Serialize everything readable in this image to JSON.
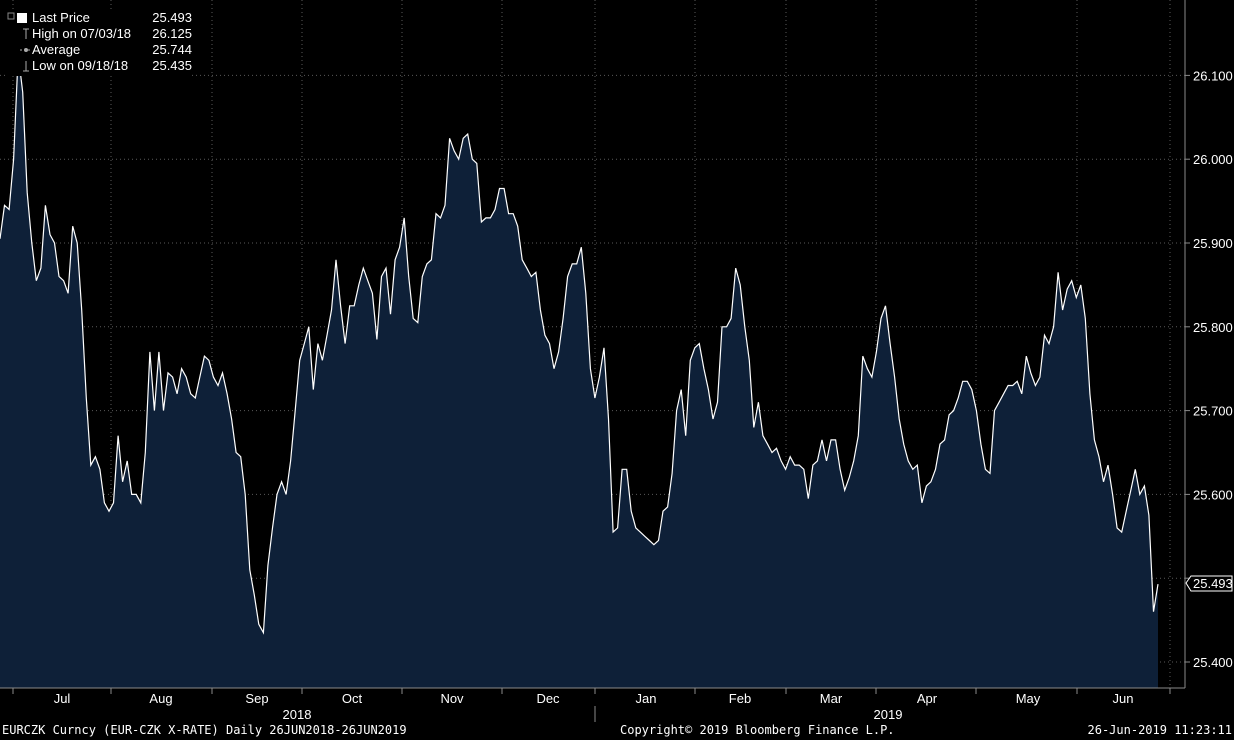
{
  "legend": {
    "last_price_label": "Last Price",
    "last_price_value": "25.493",
    "high_label": "High on 07/03/18",
    "high_value": "26.125",
    "average_label": "Average",
    "average_value": "25.744",
    "low_label": "Low on 09/18/18",
    "low_value": "25.435"
  },
  "footer": {
    "left": "EURCZK Curncy (EUR-CZK X-RATE)  Daily 26JUN2018-26JUN2019",
    "center": "Copyright© 2019 Bloomberg Finance L.P.",
    "right": "26-Jun-2019 11:23:11"
  },
  "colors": {
    "background": "#000000",
    "fill": "#0e2038",
    "line": "#ffffff",
    "grid": "#5a5a5a"
  },
  "chart_data": {
    "type": "area",
    "ylim": [
      25.38,
      26.16
    ],
    "yticks": [
      25.4,
      25.5,
      25.6,
      25.7,
      25.8,
      25.9,
      26.0,
      26.1
    ],
    "ytick_labels": [
      "25.400",
      "",
      "25.600",
      "25.700",
      "25.800",
      "25.900",
      "26.000",
      "26.100"
    ],
    "months": [
      "Jul",
      "Aug",
      "Sep",
      "Oct",
      "Nov",
      "Dec",
      "Jan",
      "Feb",
      "Mar",
      "Apr",
      "May",
      "Jun"
    ],
    "years": [
      "2018",
      "2019"
    ],
    "last_value_label": "25.493",
    "grid": true,
    "series": [
      {
        "values": [
          25.905,
          25.945,
          25.94,
          26.0,
          26.125,
          26.08,
          25.96,
          25.9,
          25.855,
          25.87,
          25.945,
          25.91,
          25.9,
          25.86,
          25.855,
          25.84,
          25.92,
          25.9,
          25.82,
          25.715,
          25.635,
          25.645,
          25.63,
          25.59,
          25.58,
          25.59,
          25.67,
          25.615,
          25.64,
          25.6,
          25.6,
          25.59,
          25.65,
          25.77,
          25.7,
          25.77,
          25.7,
          25.745,
          25.74,
          25.72,
          25.75,
          25.74,
          25.72,
          25.715,
          25.74,
          25.765,
          25.76,
          25.74,
          25.73,
          25.745,
          25.72,
          25.69,
          25.65,
          25.645,
          25.6,
          25.51,
          25.48,
          25.445,
          25.435,
          25.515,
          25.56,
          25.6,
          25.615,
          25.6,
          25.64,
          25.7,
          25.76,
          25.78,
          25.8,
          25.725,
          25.78,
          25.76,
          25.79,
          25.82,
          25.88,
          25.825,
          25.78,
          25.825,
          25.825,
          25.85,
          25.87,
          25.855,
          25.84,
          25.785,
          25.86,
          25.87,
          25.815,
          25.88,
          25.895,
          25.93,
          25.86,
          25.81,
          25.805,
          25.86,
          25.875,
          25.88,
          25.935,
          25.93,
          25.945,
          26.025,
          26.01,
          26.0,
          26.025,
          26.03,
          26.0,
          25.995,
          25.925,
          25.93,
          25.93,
          25.94,
          25.965,
          25.965,
          25.935,
          25.935,
          25.92,
          25.88,
          25.87,
          25.86,
          25.865,
          25.82,
          25.79,
          25.78,
          25.75,
          25.77,
          25.81,
          25.86,
          25.875,
          25.875,
          25.895,
          25.84,
          25.75,
          25.715,
          25.74,
          25.775,
          25.69,
          25.555,
          25.56,
          25.63,
          25.63,
          25.58,
          25.56,
          25.555,
          25.55,
          25.545,
          25.54,
          25.545,
          25.58,
          25.585,
          25.625,
          25.7,
          25.725,
          25.67,
          25.76,
          25.775,
          25.78,
          25.75,
          25.725,
          25.69,
          25.71,
          25.8,
          25.8,
          25.81,
          25.87,
          25.85,
          25.8,
          25.76,
          25.68,
          25.71,
          25.67,
          25.66,
          25.65,
          25.655,
          25.64,
          25.63,
          25.645,
          25.635,
          25.635,
          25.63,
          25.595,
          25.635,
          25.64,
          25.665,
          25.64,
          25.665,
          25.665,
          25.63,
          25.605,
          25.62,
          25.64,
          25.67,
          25.765,
          25.75,
          25.74,
          25.77,
          25.81,
          25.825,
          25.78,
          25.74,
          25.69,
          25.66,
          25.64,
          25.63,
          25.635,
          25.59,
          25.61,
          25.615,
          25.63,
          25.66,
          25.665,
          25.695,
          25.7,
          25.715,
          25.735,
          25.735,
          25.725,
          25.7,
          25.66,
          25.63,
          25.625,
          25.7,
          25.71,
          25.72,
          25.73,
          25.73,
          25.735,
          25.72,
          25.765,
          25.745,
          25.73,
          25.74,
          25.79,
          25.78,
          25.8,
          25.865,
          25.82,
          25.845,
          25.855,
          25.835,
          25.85,
          25.81,
          25.72,
          25.665,
          25.645,
          25.615,
          25.635,
          25.6,
          25.56,
          25.555,
          25.58,
          25.605,
          25.63,
          25.6,
          25.61,
          25.575,
          25.46,
          25.493
        ]
      }
    ]
  }
}
